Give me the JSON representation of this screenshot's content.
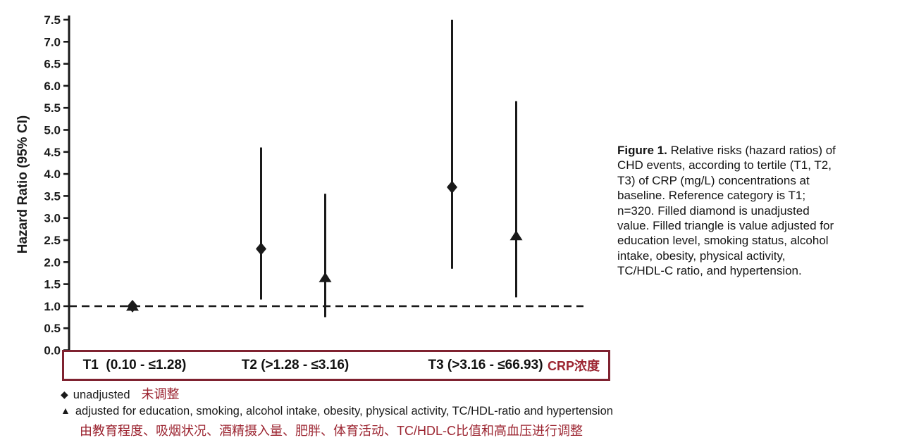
{
  "figure": {
    "caption_label": "Figure 1.",
    "caption_lines": [
      "Relative risks (hazard ratios) of",
      "CHD events, according to tertile (T1, T2,",
      "T3) of CRP (mg/L) concentrations at",
      "baseline. Reference category is T1;",
      "n=320. Filled diamond is unadjusted",
      "value. Filled triangle is value adjusted for",
      "education level, smoking status, alcohol",
      "intake, obesity, physical activity,",
      "TC/HDL-C ratio, and hypertension."
    ]
  },
  "chart_data": {
    "type": "scatter",
    "subtype": "forest-plot-vertical-ci",
    "title": "",
    "xlabel": "",
    "ylabel": "Hazard Ratio (95% CI)",
    "ylim": [
      0.0,
      7.5
    ],
    "ytick_step": 0.5,
    "reference_line_y": 1.0,
    "grid": false,
    "legend_position": "below",
    "x_categories": [
      "T1  (0.10 - ≤1.28)",
      "T2 (>1.28 - ≤3.16)",
      "T3 (>3.16 - ≤66.93)"
    ],
    "series": [
      {
        "name": "unadjusted",
        "marker": "diamond",
        "points": [
          {
            "category": "T1",
            "hr": 1.0,
            "ci_low": null,
            "ci_high": null
          },
          {
            "category": "T2",
            "hr": 2.3,
            "ci_low": 1.15,
            "ci_high": 4.6
          },
          {
            "category": "T3",
            "hr": 3.7,
            "ci_low": 1.85,
            "ci_high": 7.5
          }
        ]
      },
      {
        "name": "adjusted",
        "marker": "triangle",
        "points": [
          {
            "category": "T1",
            "hr": 1.0,
            "ci_low": null,
            "ci_high": null
          },
          {
            "category": "T2",
            "hr": 1.65,
            "ci_low": 0.75,
            "ci_high": 3.55
          },
          {
            "category": "T3",
            "hr": 2.6,
            "ci_low": 1.2,
            "ci_high": 5.65
          }
        ]
      }
    ]
  },
  "axis_annotation": {
    "crp_label": "CRP浓度"
  },
  "legend": {
    "items": [
      {
        "glyph": "◆",
        "label_en": "unadjusted",
        "label_zh": "未调整"
      },
      {
        "glyph": "▲",
        "label_en": "adjusted for education, smoking, alcohol intake, obesity, physical activity, TC/HDL-ratio and hypertension",
        "label_zh": "由教育程度、吸烟状况、酒精摄入量、肥胖、体育活动、TC/HDL-C比值和高血压进行调整"
      }
    ]
  },
  "colors": {
    "marker": "#1a1a1a",
    "red_text": "#9c2531",
    "box_border": "#7f2230"
  }
}
